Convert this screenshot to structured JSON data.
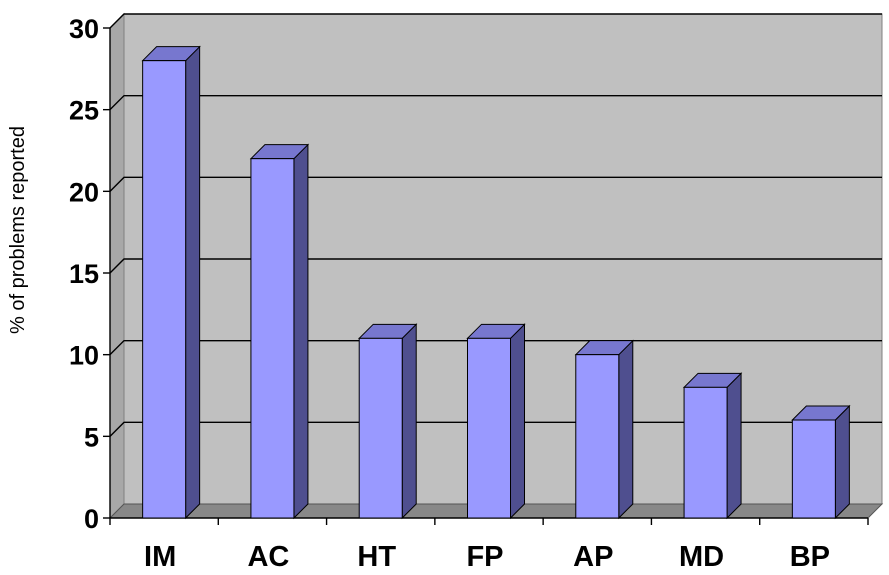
{
  "chart_data": {
    "type": "bar",
    "style": "3d-column",
    "title": "",
    "xlabel": "",
    "ylabel": "% of problems reported",
    "categories": [
      "IM",
      "AC",
      "HT",
      "FP",
      "AP",
      "MD",
      "BP"
    ],
    "values": [
      28,
      22,
      11,
      11,
      10,
      8,
      6
    ],
    "ylim": [
      0,
      30
    ],
    "yticks": [
      "0",
      "5",
      "10",
      "15",
      "20",
      "25",
      "30"
    ],
    "grid": true,
    "legend": "none"
  },
  "colors": {
    "bar_front": "#9999FF",
    "bar_side": "#4F4F8F",
    "bar_top": "#7777CF",
    "plot_wall": "#C0C0C0",
    "floor": "#888888",
    "gridline": "#000000",
    "text": "#000000"
  }
}
